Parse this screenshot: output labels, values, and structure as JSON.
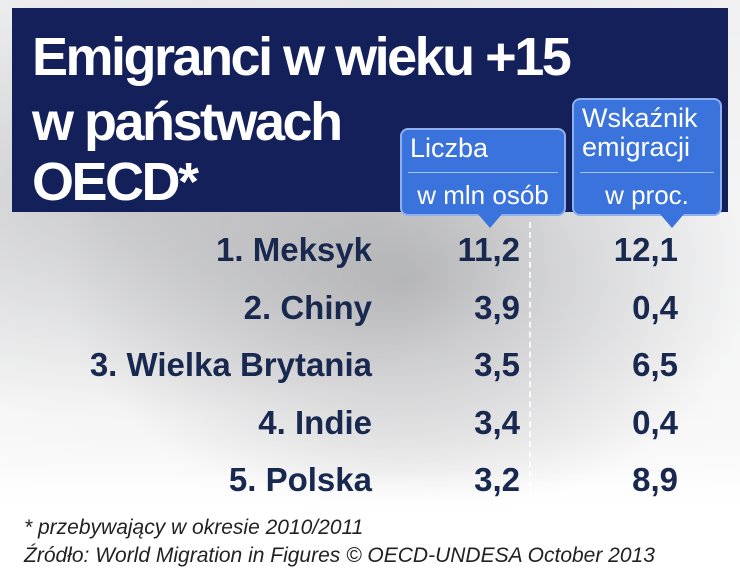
{
  "header": {
    "title_lines": [
      "Emigranci w wieku +15",
      "w państwach",
      "OECD*"
    ]
  },
  "columns": [
    {
      "title_lines": [
        "Liczba"
      ],
      "unit": "w mln osób"
    },
    {
      "title_lines": [
        "Wskaźnik",
        "emigracji"
      ],
      "unit": "w proc."
    }
  ],
  "table": {
    "rows": [
      [
        "1. Meksyk",
        "11,2",
        "12,1"
      ],
      [
        "2. Chiny",
        "3,9",
        "0,4"
      ],
      [
        "3. Wielka Brytania",
        "3,5",
        "6,5"
      ],
      [
        "4. Indie",
        "3,4",
        "0,4"
      ],
      [
        "5. Polska",
        "3,2",
        "8,9"
      ]
    ]
  },
  "footnote": "* przebywający w okresie 2010/2011",
  "source": "Źródło: World Migration in Figures © OECD-UNDESA October 2013"
}
